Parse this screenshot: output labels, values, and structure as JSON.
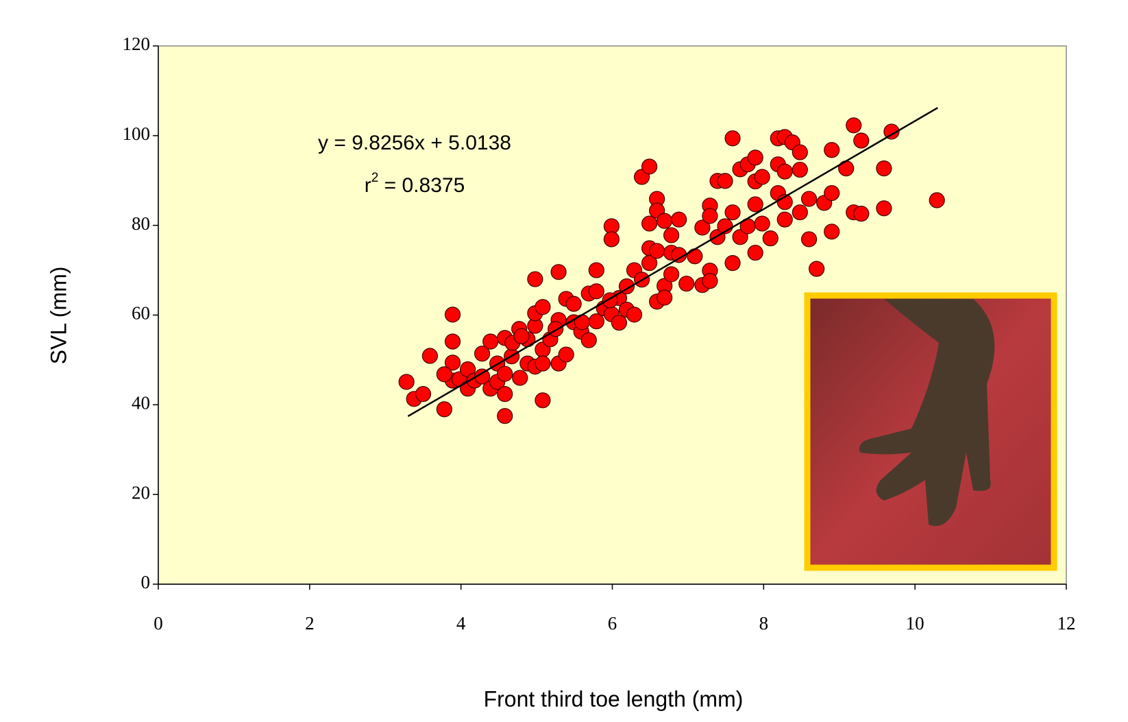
{
  "chart_data": {
    "type": "scatter",
    "x_label": "Front third toe length (mm)",
    "y_label": "SVL (mm)",
    "equation": "y = 9.8256x + 5.0138",
    "r_squared_text": {
      "base": "r",
      "superscript": "2",
      "rest": " = 0.8375"
    },
    "trendline": {
      "slope": 9.8256,
      "intercept": 5.0138,
      "x_range": [
        3.3,
        10.3
      ]
    },
    "xlim": [
      0,
      12
    ],
    "xticks": [
      0,
      2,
      4,
      6,
      8,
      10,
      12
    ],
    "ylim": [
      0,
      120
    ],
    "yticks": [
      0,
      20,
      40,
      60,
      80,
      100,
      120
    ],
    "series": [
      {
        "color": "#ff0000",
        "x": [
          3.28,
          3.38,
          3.5,
          3.59,
          3.78,
          3.89,
          3.89,
          3.89,
          3.89,
          3.78,
          3.98,
          4.09,
          4.09,
          4.18,
          4.28,
          4.28,
          4.39,
          4.39,
          4.48,
          4.48,
          4.58,
          4.58,
          4.58,
          4.58,
          4.67,
          4.68,
          4.77,
          4.78,
          4.88,
          4.88,
          4.98,
          4.98,
          4.98,
          4.98,
          5.08,
          5.08,
          5.08,
          5.08,
          5.18,
          5.29,
          5.29,
          5.29,
          5.39,
          5.39,
          5.49,
          5.49,
          5.59,
          5.69,
          5.69,
          5.79,
          5.79,
          5.79,
          5.89,
          5.99,
          5.99,
          5.99,
          6.09,
          6.09,
          6.19,
          6.19,
          6.29,
          6.29,
          6.39,
          6.39,
          6.49,
          6.49,
          6.49,
          6.49,
          6.59,
          6.59,
          6.59,
          6.59,
          6.69,
          6.69,
          6.69,
          6.78,
          6.78,
          6.78,
          6.88,
          6.88,
          6.98,
          7.09,
          7.19,
          7.19,
          7.29,
          7.29,
          7.29,
          7.29,
          7.39,
          7.39,
          7.49,
          7.49,
          7.59,
          7.59,
          7.59,
          7.69,
          7.69,
          7.79,
          7.79,
          7.89,
          7.89,
          7.89,
          7.89,
          7.98,
          7.98,
          8.09,
          8.19,
          8.19,
          8.19,
          8.28,
          8.28,
          8.28,
          8.28,
          8.38,
          8.48,
          8.48,
          8.48,
          8.6,
          8.6,
          8.7,
          8.8,
          8.9,
          8.9,
          8.9,
          9.09,
          9.19,
          9.19,
          9.29,
          9.29,
          9.59,
          9.59,
          9.69,
          10.29,
          4.8,
          5.25,
          5.6,
          5.97
        ],
        "y": [
          45.1,
          41.3,
          42.4,
          50.9,
          39.0,
          60.1,
          54.1,
          49.4,
          45.4,
          46.8,
          45.7,
          47.9,
          43.6,
          45.4,
          51.4,
          46.3,
          54.1,
          43.6,
          49.2,
          45.1,
          37.5,
          42.4,
          46.9,
          54.9,
          50.8,
          53.8,
          56.9,
          46.0,
          49.2,
          54.6,
          68.0,
          57.6,
          60.4,
          48.5,
          61.8,
          41.0,
          52.3,
          49.2,
          54.6,
          69.6,
          58.9,
          49.2,
          51.2,
          63.6,
          62.5,
          58.4,
          56.3,
          54.4,
          64.8,
          70.0,
          65.3,
          58.6,
          61.5,
          79.8,
          76.9,
          60.2,
          63.8,
          58.3,
          66.4,
          61.2,
          60.1,
          70.0,
          90.8,
          67.9,
          93.1,
          80.4,
          74.9,
          71.6,
          85.9,
          83.3,
          74.3,
          63.0,
          81.0,
          66.5,
          63.9,
          77.8,
          73.9,
          69.1,
          81.3,
          73.4,
          67.0,
          73.1,
          79.5,
          66.7,
          84.4,
          82.1,
          69.9,
          67.6,
          89.9,
          77.4,
          89.9,
          79.8,
          99.4,
          82.9,
          71.6,
          92.5,
          77.4,
          93.6,
          79.8,
          95.1,
          89.8,
          84.7,
          73.9,
          90.8,
          80.4,
          77.1,
          99.4,
          93.6,
          87.2,
          99.7,
          92.0,
          85.2,
          81.3,
          98.5,
          96.3,
          92.4,
          82.9,
          85.9,
          76.9,
          70.3,
          85.0,
          96.8,
          87.2,
          78.6,
          92.7,
          82.9,
          102.3,
          98.9,
          82.6,
          92.7,
          83.8,
          100.9,
          85.6,
          55.3,
          56.9,
          58.4,
          63.3
        ]
      }
    ]
  }
}
